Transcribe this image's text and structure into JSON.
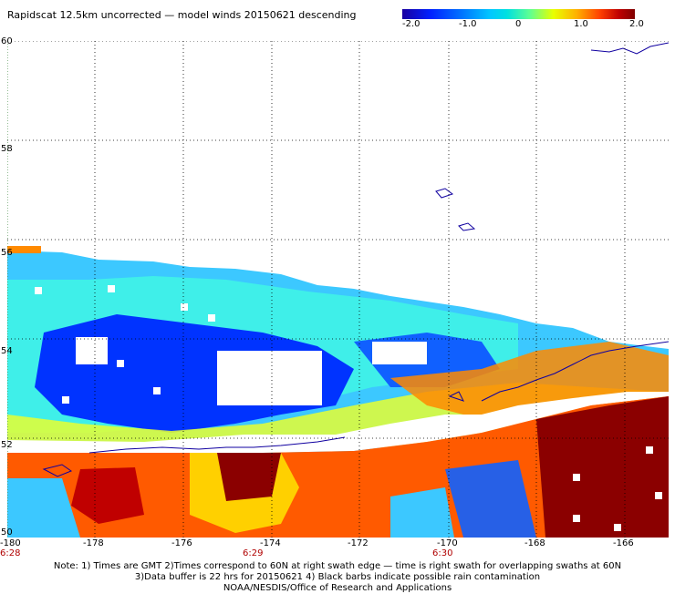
{
  "title": "Rapidscat 12.5km uncorrected — model winds 20150621 descending",
  "colorbar": {
    "ticks": [
      "-2.0",
      "-1.0",
      "0",
      "1.0",
      "2.0"
    ],
    "colors": [
      "#1a00a0",
      "#0020ff",
      "#0070ff",
      "#00c8ff",
      "#00e0e0",
      "#60ff90",
      "#e8ff00",
      "#ffb000",
      "#ff4000",
      "#c00000",
      "#800000"
    ]
  },
  "x_axis": {
    "labels": [
      "-180",
      "-178",
      "-176",
      "-174",
      "-172",
      "-170",
      "-168",
      "-166"
    ]
  },
  "y_axis": {
    "labels": [
      "60",
      "58",
      "56",
      "54",
      "52",
      "50"
    ]
  },
  "times": [
    "6:28",
    "6:29",
    "6:30"
  ],
  "notes": {
    "line1": "Note: 1) Times are GMT 2)Times correspond to 60N at right swath edge — time is right swath for overlapping swaths at 60N",
    "line2": "3)Data buffer is 22 hrs for 20150621 4) Black barbs indicate possible rain contamination",
    "line3": "NOAA/NESDIS/Office of Research and Applications"
  }
}
